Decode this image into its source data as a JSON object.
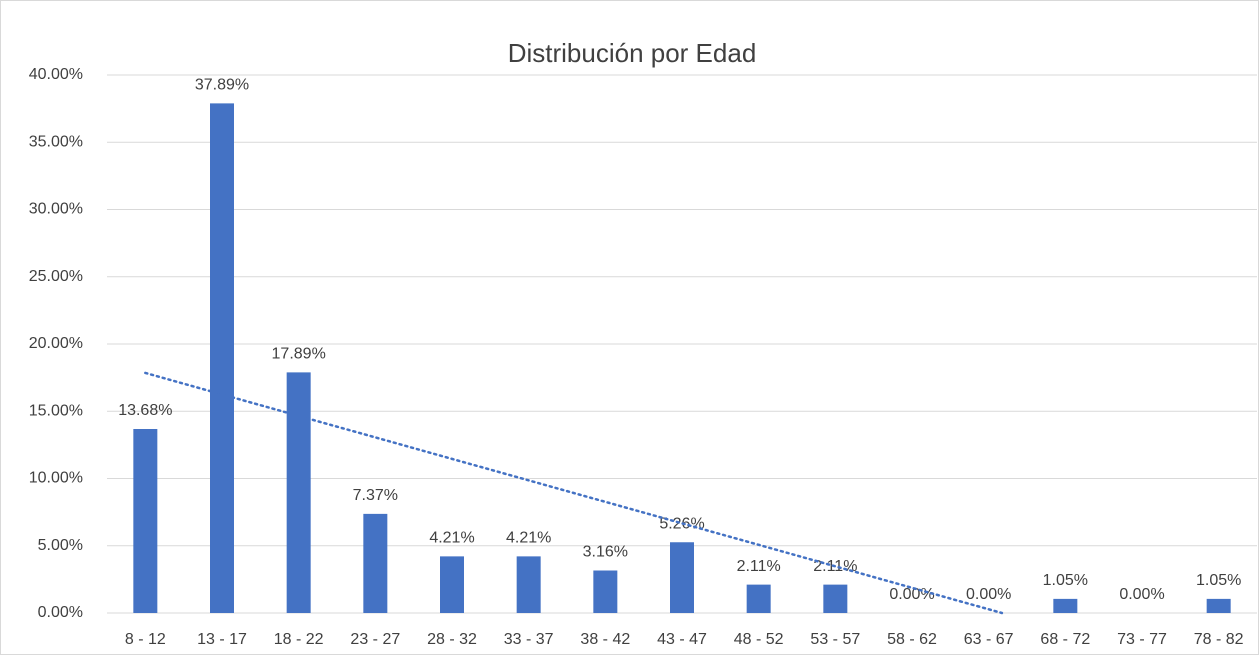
{
  "chart_data": {
    "type": "bar",
    "title": "Distribución por Edad",
    "categories": [
      "8 - 12",
      "13 - 17",
      "18 - 22",
      "23 - 27",
      "28 - 32",
      "33 - 37",
      "38 - 42",
      "43 - 47",
      "48 - 52",
      "53 - 57",
      "58 - 62",
      "63 - 67",
      "68 - 72",
      "73 - 77",
      "78 - 82"
    ],
    "values": [
      13.68,
      37.89,
      17.89,
      7.37,
      4.21,
      4.21,
      3.16,
      5.26,
      2.11,
      2.11,
      0,
      0,
      1.05,
      0,
      1.05
    ],
    "value_labels": [
      "13.68%",
      "37.89%",
      "17.89%",
      "7.37%",
      "4.21%",
      "4.21%",
      "3.16%",
      "5.26%",
      "2.11%",
      "2.11%",
      "0.00%",
      "0.00%",
      "1.05%",
      "0.00%",
      "1.05%"
    ],
    "color": "#4472c4",
    "ylim": [
      0,
      40
    ],
    "yticks": [
      {
        "value": 0,
        "label": "0.00%"
      },
      {
        "value": 5,
        "label": "5.00%"
      },
      {
        "value": 10,
        "label": "10.00%"
      },
      {
        "value": 15,
        "label": "15.00%"
      },
      {
        "value": 20,
        "label": "20.00%"
      },
      {
        "value": 25,
        "label": "25.00%"
      },
      {
        "value": 30,
        "label": "30.00%"
      },
      {
        "value": 35,
        "label": "35.00%"
      },
      {
        "value": 40,
        "label": "40.00%"
      }
    ],
    "grid": true,
    "trendline": "linear"
  }
}
